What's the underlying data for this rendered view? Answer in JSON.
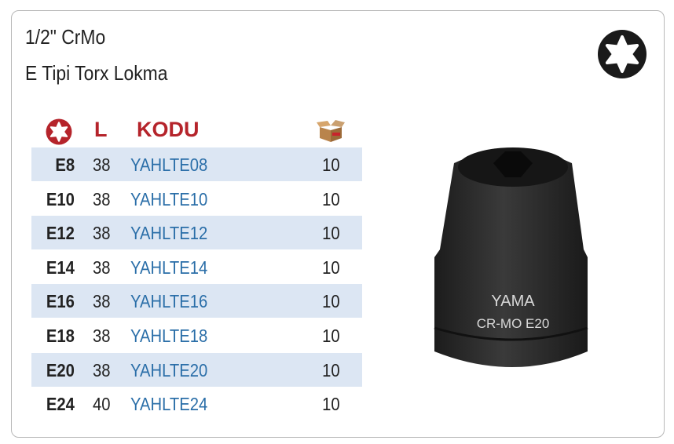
{
  "title_line1": "1/2\" CrMo",
  "title_line2": "E Tipi Torx Lokma",
  "icons": {
    "header_size": "torx-icon",
    "header_qty": "box-icon",
    "corner": "torx-icon"
  },
  "colors": {
    "header": "#b5242b",
    "code": "#2a6ea8",
    "stripe": "#dce6f3"
  },
  "table": {
    "headers": {
      "length": "L",
      "code": "KODU"
    },
    "rows": [
      {
        "size": "E8",
        "length": "38",
        "code": "YAHLTE08",
        "qty": "10"
      },
      {
        "size": "E10",
        "length": "38",
        "code": "YAHLTE10",
        "qty": "10"
      },
      {
        "size": "E12",
        "length": "38",
        "code": "YAHLTE12",
        "qty": "10"
      },
      {
        "size": "E14",
        "length": "38",
        "code": "YAHLTE14",
        "qty": "10"
      },
      {
        "size": "E16",
        "length": "38",
        "code": "YAHLTE16",
        "qty": "10"
      },
      {
        "size": "E18",
        "length": "38",
        "code": "YAHLTE18",
        "qty": "10"
      },
      {
        "size": "E20",
        "length": "38",
        "code": "YAHLTE20",
        "qty": "10"
      },
      {
        "size": "E24",
        "length": "40",
        "code": "YAHLTE24",
        "qty": "10"
      }
    ]
  },
  "product_image": {
    "brand": "YAMA",
    "marking": "CR-MO E20"
  }
}
